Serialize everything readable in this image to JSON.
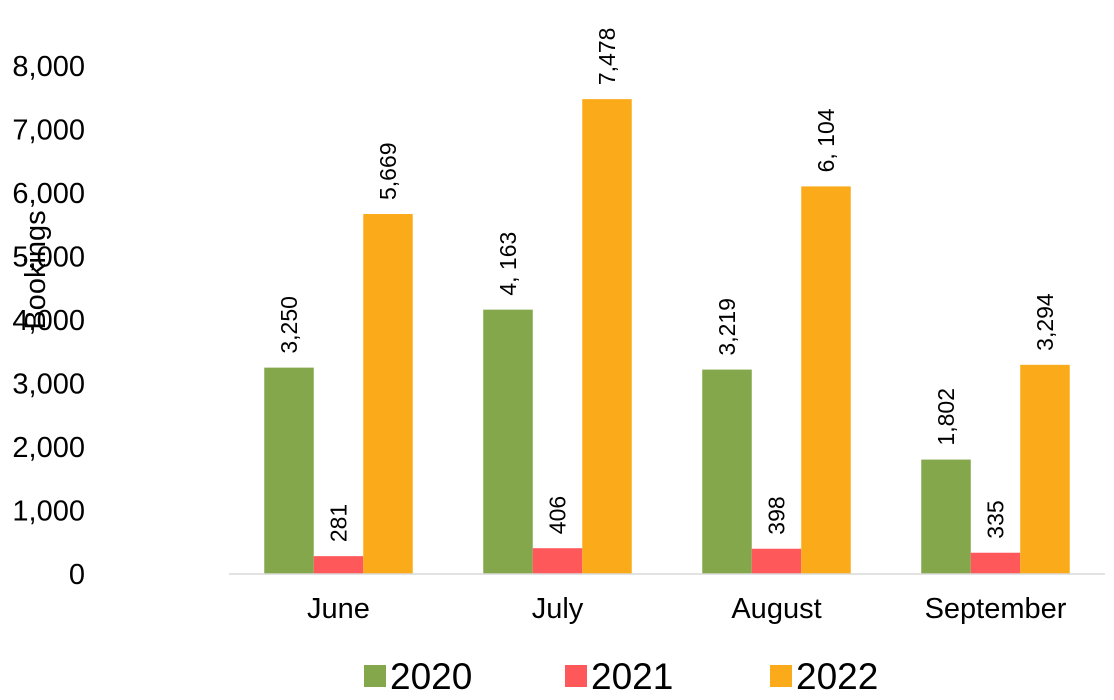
{
  "chart_data": {
    "type": "bar",
    "title": "",
    "xlabel": "",
    "ylabel": "Bookings",
    "categories": [
      "June",
      "July",
      "August",
      "September"
    ],
    "series": [
      {
        "name": "2020",
        "color": "#84A74B",
        "values": [
          3250,
          4163,
          3219,
          1802
        ],
        "labels": [
          "3,250",
          "4, 163",
          "3,219",
          "1,802"
        ]
      },
      {
        "name": "2021",
        "color": "#FF585A",
        "values": [
          281,
          406,
          398,
          335
        ],
        "labels": [
          "281",
          "406",
          "398",
          "335"
        ]
      },
      {
        "name": "2022",
        "color": "#FBAA19",
        "values": [
          5669,
          7478,
          6104,
          3294
        ],
        "labels": [
          "5,669",
          "7,478",
          "6, 104",
          "3,294"
        ]
      }
    ],
    "ylim": [
      0,
      8000
    ],
    "yticks": [
      0,
      1000,
      2000,
      3000,
      4000,
      5000,
      6000,
      7000,
      8000
    ],
    "ytick_labels": [
      "0",
      "1,000",
      "2,000",
      "3,000",
      "4,000",
      "5,000",
      "6,000",
      "7,000",
      "8,000"
    ],
    "grid": false,
    "legend_position": "bottom"
  }
}
